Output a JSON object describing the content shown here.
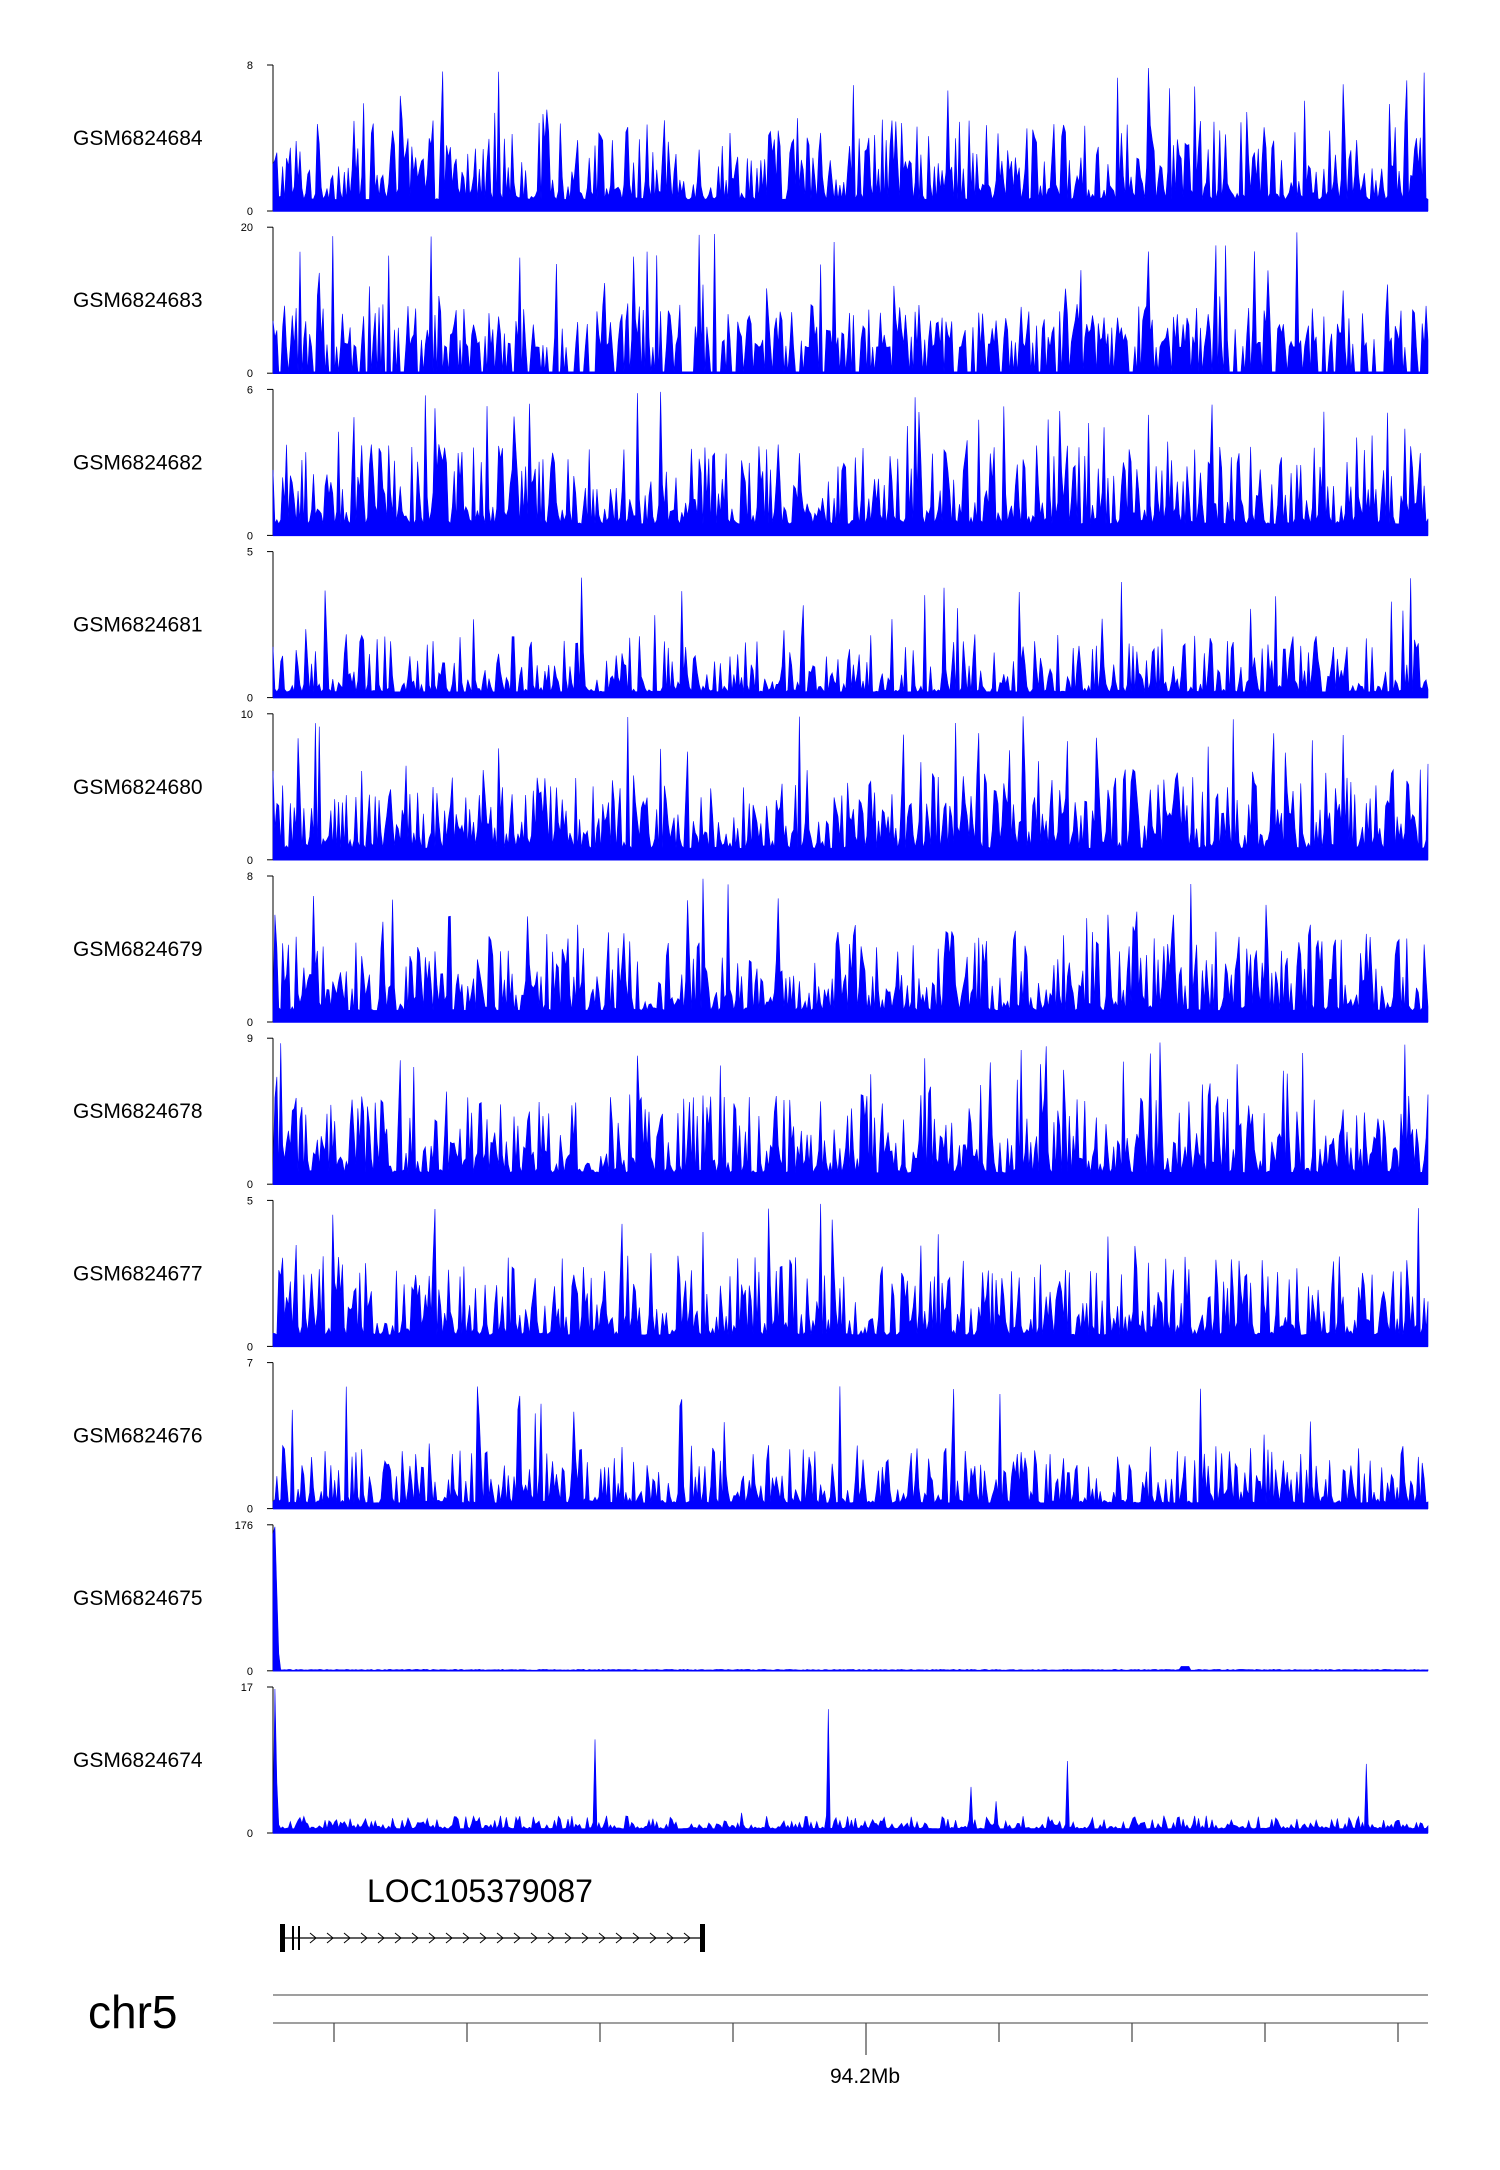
{
  "chart_data": {
    "type": "area",
    "chromosome": "chr5",
    "position_label": "94.2Mb",
    "gene": {
      "name": "LOC105379087",
      "strand": "+"
    },
    "colors": {
      "signal": "#0000ff",
      "axis": "#000000"
    },
    "tracks": [
      {
        "name": "GSM6824684",
        "ymin": 0,
        "ymax": 8,
        "profile": "dense"
      },
      {
        "name": "GSM6824683",
        "ymin": 0,
        "ymax": 20,
        "profile": "gapped"
      },
      {
        "name": "GSM6824682",
        "ymin": 0,
        "ymax": 6,
        "profile": "dense"
      },
      {
        "name": "GSM6824681",
        "ymin": 0,
        "ymax": 5,
        "profile": "low"
      },
      {
        "name": "GSM6824680",
        "ymin": 0,
        "ymax": 10,
        "profile": "dense"
      },
      {
        "name": "GSM6824679",
        "ymin": 0,
        "ymax": 8,
        "profile": "dense"
      },
      {
        "name": "GSM6824678",
        "ymin": 0,
        "ymax": 9,
        "profile": "dense"
      },
      {
        "name": "GSM6824677",
        "ymin": 0,
        "ymax": 5,
        "profile": "dense"
      },
      {
        "name": "GSM6824676",
        "ymin": 0,
        "ymax": 7,
        "profile": "low"
      },
      {
        "name": "GSM6824675",
        "ymin": 0,
        "ymax": 176,
        "profile": "spike-left"
      },
      {
        "name": "GSM6824674",
        "ymin": 0,
        "ymax": 17,
        "profile": "peaks"
      }
    ]
  }
}
